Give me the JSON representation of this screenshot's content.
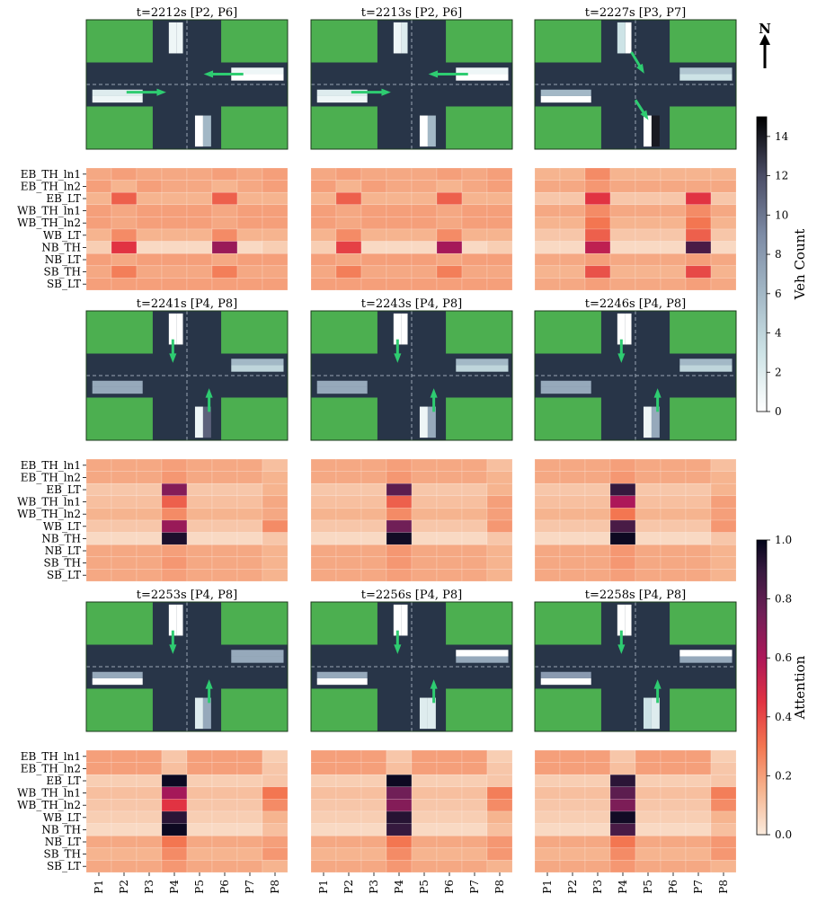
{
  "chart_data": {
    "type": "heatmap",
    "north_label": "N",
    "row_labels": [
      "EB_TH_ln1",
      "EB_TH_ln2",
      "EB_LT",
      "WB_TH_ln1",
      "WB_TH_ln2",
      "WB_LT",
      "NB_TH",
      "NB_LT",
      "SB_TH",
      "SB_LT"
    ],
    "col_labels": [
      "P1",
      "P2",
      "P3",
      "P4",
      "P5",
      "P6",
      "P7",
      "P8"
    ],
    "veh_colorbar": {
      "label": "Veh Count",
      "range": [
        0,
        15
      ],
      "ticks": [
        "0",
        "2",
        "4",
        "6",
        "8",
        "10",
        "12",
        "14"
      ]
    },
    "attn_colorbar": {
      "label": "Attention",
      "range": [
        0,
        1
      ],
      "ticks": [
        "0.0",
        "0.2",
        "0.4",
        "0.6",
        "0.8",
        "1.0"
      ]
    },
    "colors": {
      "grass": "#4caf50",
      "road": "#283548",
      "arrow": "#2ecc71",
      "lane_line": "#9aa5b4"
    },
    "panels": [
      {
        "title": "t=2212s [P2, P6]",
        "arrows": [
          "WB_TH",
          "EB_TH"
        ],
        "queues": {
          "SB_a": 1,
          "SB_b": 1,
          "WB_TH": 1,
          "WB_LT": 0,
          "EB_TH": 2,
          "EB_LT": 1,
          "NB_TH": 0,
          "NB_LT": 6
        },
        "attention": [
          [
            0.18,
            0.2,
            0.18,
            0.18,
            0.18,
            0.2,
            0.18,
            0.2
          ],
          [
            0.2,
            0.15,
            0.2,
            0.18,
            0.18,
            0.15,
            0.18,
            0.2
          ],
          [
            0.15,
            0.35,
            0.15,
            0.15,
            0.15,
            0.35,
            0.15,
            0.15
          ],
          [
            0.2,
            0.18,
            0.2,
            0.2,
            0.2,
            0.18,
            0.2,
            0.2
          ],
          [
            0.2,
            0.18,
            0.2,
            0.2,
            0.2,
            0.18,
            0.2,
            0.2
          ],
          [
            0.15,
            0.25,
            0.15,
            0.15,
            0.15,
            0.25,
            0.15,
            0.15
          ],
          [
            0.08,
            0.45,
            0.05,
            0.05,
            0.05,
            0.65,
            0.05,
            0.08
          ],
          [
            0.2,
            0.18,
            0.2,
            0.2,
            0.2,
            0.18,
            0.2,
            0.2
          ],
          [
            0.18,
            0.28,
            0.18,
            0.18,
            0.18,
            0.28,
            0.18,
            0.18
          ],
          [
            0.2,
            0.2,
            0.2,
            0.2,
            0.2,
            0.2,
            0.2,
            0.2
          ]
        ]
      },
      {
        "title": "t=2213s [P2, P6]",
        "arrows": [
          "WB_TH",
          "EB_TH"
        ],
        "queues": {
          "SB_a": 1,
          "SB_b": 2,
          "WB_TH": 1,
          "WB_LT": 0,
          "EB_TH": 2,
          "EB_LT": 1,
          "NB_TH": 0,
          "NB_LT": 6
        },
        "attention": [
          [
            0.18,
            0.2,
            0.18,
            0.18,
            0.18,
            0.2,
            0.18,
            0.2
          ],
          [
            0.2,
            0.15,
            0.2,
            0.18,
            0.18,
            0.15,
            0.18,
            0.2
          ],
          [
            0.15,
            0.35,
            0.15,
            0.15,
            0.15,
            0.35,
            0.15,
            0.15
          ],
          [
            0.2,
            0.18,
            0.2,
            0.2,
            0.2,
            0.18,
            0.2,
            0.2
          ],
          [
            0.2,
            0.18,
            0.2,
            0.2,
            0.2,
            0.18,
            0.2,
            0.2
          ],
          [
            0.15,
            0.25,
            0.15,
            0.15,
            0.15,
            0.25,
            0.15,
            0.15
          ],
          [
            0.08,
            0.42,
            0.05,
            0.05,
            0.05,
            0.62,
            0.05,
            0.08
          ],
          [
            0.2,
            0.18,
            0.2,
            0.2,
            0.2,
            0.18,
            0.2,
            0.2
          ],
          [
            0.18,
            0.28,
            0.18,
            0.18,
            0.18,
            0.28,
            0.18,
            0.18
          ],
          [
            0.2,
            0.2,
            0.2,
            0.2,
            0.2,
            0.2,
            0.2,
            0.2
          ]
        ]
      },
      {
        "title": "t=2227s [P3, P7]",
        "arrows": [
          "SB_LT",
          "NB_LT"
        ],
        "queues": {
          "SB_a": 3,
          "SB_b": 0,
          "WB_TH": 5,
          "WB_LT": 3,
          "EB_TH": 6,
          "EB_LT": 0,
          "NB_TH": 0,
          "NB_LT": 14
        },
        "attention": [
          [
            0.15,
            0.15,
            0.25,
            0.15,
            0.15,
            0.15,
            0.15,
            0.15
          ],
          [
            0.18,
            0.18,
            0.22,
            0.18,
            0.18,
            0.18,
            0.18,
            0.18
          ],
          [
            0.1,
            0.1,
            0.45,
            0.1,
            0.1,
            0.1,
            0.45,
            0.1
          ],
          [
            0.18,
            0.18,
            0.25,
            0.18,
            0.18,
            0.18,
            0.25,
            0.18
          ],
          [
            0.15,
            0.15,
            0.3,
            0.15,
            0.15,
            0.15,
            0.3,
            0.15
          ],
          [
            0.1,
            0.1,
            0.35,
            0.1,
            0.1,
            0.1,
            0.35,
            0.1
          ],
          [
            0.05,
            0.05,
            0.55,
            0.05,
            0.05,
            0.05,
            0.85,
            0.05
          ],
          [
            0.18,
            0.18,
            0.2,
            0.18,
            0.18,
            0.18,
            0.2,
            0.18
          ],
          [
            0.15,
            0.15,
            0.38,
            0.15,
            0.15,
            0.15,
            0.4,
            0.15
          ],
          [
            0.18,
            0.18,
            0.2,
            0.18,
            0.18,
            0.18,
            0.2,
            0.18
          ]
        ]
      },
      {
        "title": "t=2241s [P4, P8]",
        "arrows": [
          "SB_TH",
          "NB_TH"
        ],
        "queues": {
          "SB_a": 0,
          "SB_b": 0,
          "WB_TH": 6,
          "WB_LT": 4,
          "EB_TH": 7,
          "EB_LT": 7,
          "NB_TH": 1,
          "NB_LT": 11
        },
        "attention": [
          [
            0.18,
            0.18,
            0.18,
            0.2,
            0.18,
            0.18,
            0.18,
            0.12
          ],
          [
            0.18,
            0.18,
            0.18,
            0.22,
            0.18,
            0.18,
            0.18,
            0.15
          ],
          [
            0.1,
            0.1,
            0.1,
            0.7,
            0.1,
            0.1,
            0.1,
            0.15
          ],
          [
            0.12,
            0.12,
            0.12,
            0.35,
            0.12,
            0.12,
            0.12,
            0.18
          ],
          [
            0.15,
            0.15,
            0.15,
            0.25,
            0.15,
            0.15,
            0.15,
            0.18
          ],
          [
            0.1,
            0.1,
            0.1,
            0.65,
            0.1,
            0.1,
            0.1,
            0.25
          ],
          [
            0.05,
            0.05,
            0.05,
            0.95,
            0.05,
            0.05,
            0.05,
            0.1
          ],
          [
            0.18,
            0.18,
            0.18,
            0.2,
            0.18,
            0.18,
            0.18,
            0.15
          ],
          [
            0.18,
            0.18,
            0.18,
            0.22,
            0.18,
            0.18,
            0.18,
            0.15
          ],
          [
            0.18,
            0.18,
            0.18,
            0.2,
            0.18,
            0.18,
            0.18,
            0.15
          ]
        ]
      },
      {
        "title": "t=2243s [P4, P8]",
        "arrows": [
          "SB_TH",
          "NB_TH"
        ],
        "queues": {
          "SB_a": 0,
          "SB_b": 0,
          "WB_TH": 6,
          "WB_LT": 4,
          "EB_TH": 7,
          "EB_LT": 7,
          "NB_TH": 1,
          "NB_LT": 7
        },
        "attention": [
          [
            0.18,
            0.18,
            0.18,
            0.2,
            0.18,
            0.18,
            0.18,
            0.12
          ],
          [
            0.18,
            0.18,
            0.18,
            0.22,
            0.18,
            0.18,
            0.18,
            0.15
          ],
          [
            0.1,
            0.1,
            0.1,
            0.8,
            0.1,
            0.1,
            0.1,
            0.15
          ],
          [
            0.12,
            0.12,
            0.12,
            0.35,
            0.12,
            0.12,
            0.12,
            0.2
          ],
          [
            0.15,
            0.15,
            0.15,
            0.25,
            0.15,
            0.15,
            0.15,
            0.2
          ],
          [
            0.1,
            0.1,
            0.1,
            0.75,
            0.1,
            0.1,
            0.1,
            0.22
          ],
          [
            0.05,
            0.05,
            0.05,
            0.97,
            0.05,
            0.05,
            0.05,
            0.1
          ],
          [
            0.18,
            0.18,
            0.18,
            0.22,
            0.18,
            0.18,
            0.18,
            0.15
          ],
          [
            0.18,
            0.18,
            0.18,
            0.22,
            0.18,
            0.18,
            0.18,
            0.15
          ],
          [
            0.18,
            0.18,
            0.18,
            0.2,
            0.18,
            0.18,
            0.18,
            0.15
          ]
        ]
      },
      {
        "title": "t=2246s [P4, P8]",
        "arrows": [
          "SB_TH",
          "NB_TH"
        ],
        "queues": {
          "SB_a": 0,
          "SB_b": 0,
          "WB_TH": 6,
          "WB_LT": 4,
          "EB_TH": 7,
          "EB_LT": 7,
          "NB_TH": 1,
          "NB_LT": 7
        },
        "attention": [
          [
            0.18,
            0.18,
            0.18,
            0.2,
            0.18,
            0.18,
            0.18,
            0.12
          ],
          [
            0.18,
            0.18,
            0.18,
            0.22,
            0.18,
            0.18,
            0.18,
            0.15
          ],
          [
            0.1,
            0.1,
            0.1,
            0.9,
            0.1,
            0.1,
            0.1,
            0.15
          ],
          [
            0.12,
            0.12,
            0.12,
            0.6,
            0.12,
            0.12,
            0.12,
            0.2
          ],
          [
            0.15,
            0.15,
            0.15,
            0.3,
            0.15,
            0.15,
            0.15,
            0.2
          ],
          [
            0.1,
            0.1,
            0.1,
            0.85,
            0.1,
            0.1,
            0.1,
            0.22
          ],
          [
            0.05,
            0.05,
            0.05,
            0.98,
            0.05,
            0.05,
            0.05,
            0.1
          ],
          [
            0.18,
            0.18,
            0.18,
            0.22,
            0.18,
            0.18,
            0.18,
            0.15
          ],
          [
            0.18,
            0.18,
            0.18,
            0.22,
            0.18,
            0.18,
            0.18,
            0.15
          ],
          [
            0.18,
            0.18,
            0.18,
            0.2,
            0.18,
            0.18,
            0.18,
            0.15
          ]
        ]
      },
      {
        "title": "t=2253s [P4, P8]",
        "arrows": [
          "SB_TH",
          "NB_TH"
        ],
        "queues": {
          "SB_a": 0,
          "SB_b": 0,
          "WB_TH": 7,
          "WB_LT": 7,
          "EB_TH": 7,
          "EB_LT": 0,
          "NB_TH": 2,
          "NB_LT": 7
        },
        "attention": [
          [
            0.2,
            0.2,
            0.2,
            0.1,
            0.2,
            0.2,
            0.2,
            0.08
          ],
          [
            0.2,
            0.2,
            0.2,
            0.12,
            0.2,
            0.2,
            0.2,
            0.1
          ],
          [
            0.08,
            0.08,
            0.08,
            0.98,
            0.08,
            0.08,
            0.08,
            0.1
          ],
          [
            0.12,
            0.12,
            0.12,
            0.62,
            0.12,
            0.12,
            0.12,
            0.3
          ],
          [
            0.1,
            0.1,
            0.1,
            0.45,
            0.1,
            0.1,
            0.1,
            0.25
          ],
          [
            0.08,
            0.08,
            0.08,
            0.92,
            0.08,
            0.08,
            0.08,
            0.15
          ],
          [
            0.05,
            0.05,
            0.05,
            0.98,
            0.05,
            0.05,
            0.05,
            0.12
          ],
          [
            0.18,
            0.18,
            0.18,
            0.3,
            0.18,
            0.18,
            0.18,
            0.2
          ],
          [
            0.15,
            0.15,
            0.15,
            0.25,
            0.15,
            0.15,
            0.15,
            0.22
          ],
          [
            0.18,
            0.18,
            0.18,
            0.22,
            0.18,
            0.18,
            0.18,
            0.15
          ]
        ]
      },
      {
        "title": "t=2256s [P4, P8]",
        "arrows": [
          "SB_TH",
          "NB_TH"
        ],
        "queues": {
          "SB_a": 0,
          "SB_b": 0,
          "WB_TH": 0,
          "WB_LT": 7,
          "EB_TH": 7,
          "EB_LT": 0,
          "NB_TH": 2,
          "NB_LT": 2
        },
        "attention": [
          [
            0.2,
            0.2,
            0.2,
            0.1,
            0.2,
            0.2,
            0.2,
            0.08
          ],
          [
            0.2,
            0.2,
            0.2,
            0.12,
            0.2,
            0.2,
            0.2,
            0.1
          ],
          [
            0.08,
            0.08,
            0.08,
            0.98,
            0.08,
            0.08,
            0.08,
            0.1
          ],
          [
            0.12,
            0.12,
            0.12,
            0.75,
            0.12,
            0.12,
            0.12,
            0.28
          ],
          [
            0.1,
            0.1,
            0.1,
            0.7,
            0.1,
            0.1,
            0.1,
            0.25
          ],
          [
            0.08,
            0.08,
            0.08,
            0.93,
            0.08,
            0.08,
            0.08,
            0.15
          ],
          [
            0.05,
            0.05,
            0.05,
            0.9,
            0.05,
            0.05,
            0.05,
            0.12
          ],
          [
            0.18,
            0.18,
            0.18,
            0.3,
            0.18,
            0.18,
            0.18,
            0.22
          ],
          [
            0.15,
            0.15,
            0.15,
            0.25,
            0.15,
            0.15,
            0.15,
            0.22
          ],
          [
            0.18,
            0.18,
            0.18,
            0.22,
            0.18,
            0.18,
            0.18,
            0.15
          ]
        ]
      },
      {
        "title": "t=2258s [P4, P8]",
        "arrows": [
          "SB_TH",
          "NB_TH"
        ],
        "queues": {
          "SB_a": 0,
          "SB_b": 0,
          "WB_TH": 0,
          "WB_LT": 7,
          "EB_TH": 8,
          "EB_LT": 0,
          "NB_TH": 3,
          "NB_LT": 2
        },
        "attention": [
          [
            0.2,
            0.2,
            0.2,
            0.1,
            0.2,
            0.2,
            0.2,
            0.08
          ],
          [
            0.2,
            0.2,
            0.2,
            0.12,
            0.2,
            0.2,
            0.2,
            0.1
          ],
          [
            0.08,
            0.08,
            0.08,
            0.92,
            0.08,
            0.08,
            0.08,
            0.1
          ],
          [
            0.12,
            0.12,
            0.12,
            0.8,
            0.12,
            0.12,
            0.12,
            0.28
          ],
          [
            0.1,
            0.1,
            0.1,
            0.72,
            0.1,
            0.1,
            0.1,
            0.25
          ],
          [
            0.08,
            0.08,
            0.08,
            0.97,
            0.08,
            0.08,
            0.08,
            0.15
          ],
          [
            0.05,
            0.05,
            0.05,
            0.85,
            0.05,
            0.05,
            0.05,
            0.12
          ],
          [
            0.18,
            0.18,
            0.18,
            0.3,
            0.18,
            0.18,
            0.18,
            0.22
          ],
          [
            0.15,
            0.15,
            0.15,
            0.25,
            0.15,
            0.15,
            0.15,
            0.22
          ],
          [
            0.18,
            0.18,
            0.18,
            0.22,
            0.18,
            0.18,
            0.18,
            0.15
          ]
        ]
      }
    ]
  }
}
